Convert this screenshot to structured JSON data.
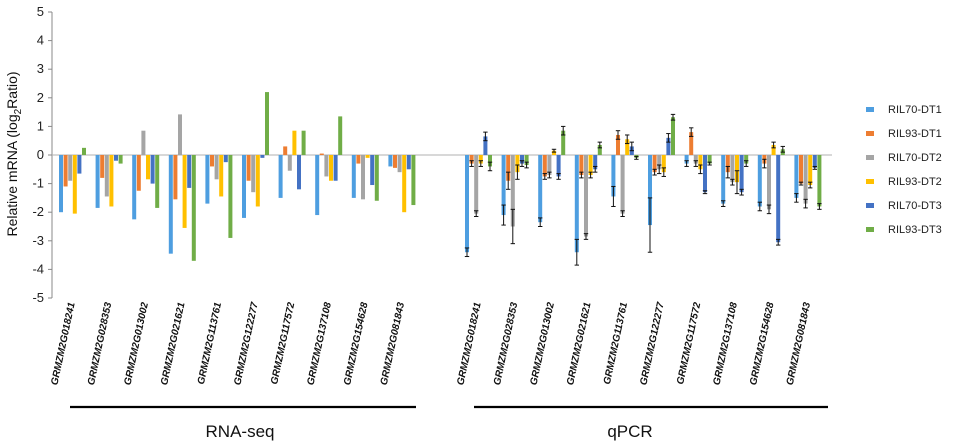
{
  "chart_data": {
    "type": "bar",
    "ylabel_prefix": "Relative mRNA (log",
    "ylabel_sub": "2",
    "ylabel_suffix": "Ratio)",
    "ylim": [
      -5,
      5
    ],
    "yticks": [
      "5",
      "4",
      "3",
      "2",
      "1",
      "0",
      "-1",
      "-2",
      "-3",
      "-4",
      "-5"
    ],
    "grid": false,
    "legend_position": "right",
    "categories": [
      "GRMZM2G018241",
      "GRMZM2G028353",
      "GRMZM2G013002",
      "GRMZM2G021621",
      "GRMZM2G113761",
      "GRMZM2G122277",
      "GRMZM2G117572",
      "GRMZM2G137108",
      "GRMZM2G154628",
      "GRMZM2G081843"
    ],
    "series_names": [
      "RIL70-DT1",
      "RIL93-DT1",
      "RIL70-DT2",
      "RIL93-DT2",
      "RIL70-DT3",
      "RIL93-DT3"
    ],
    "series_colors": [
      "#4e9ee0",
      "#ed7d31",
      "#a5a5a5",
      "#ffc000",
      "#4472c4",
      "#70ad47"
    ],
    "groups": [
      {
        "name": "RNA-seq",
        "values": [
          [
            -2.0,
            -1.1,
            -0.9,
            -2.05,
            -0.65,
            0.25
          ],
          [
            -1.85,
            -0.8,
            -1.45,
            -1.8,
            -0.2,
            -0.3
          ],
          [
            -2.25,
            -1.25,
            0.85,
            -0.85,
            -1.0,
            -1.85
          ],
          [
            -3.45,
            -1.55,
            1.42,
            -2.55,
            -1.15,
            -3.7
          ],
          [
            -1.7,
            -0.4,
            -0.85,
            -1.45,
            -0.25,
            -2.9
          ],
          [
            -2.2,
            -0.9,
            -1.3,
            -1.8,
            -0.1,
            2.2
          ],
          [
            -1.5,
            0.3,
            -0.55,
            0.85,
            -1.2,
            0.85
          ],
          [
            -2.1,
            0.05,
            -0.75,
            -0.9,
            -0.9,
            1.35
          ],
          [
            -1.5,
            -0.3,
            -1.55,
            -0.1,
            -1.05,
            -1.6
          ],
          [
            -0.4,
            -0.45,
            -0.6,
            -2.0,
            -0.5,
            -1.75
          ]
        ]
      },
      {
        "name": "qPCR",
        "values": [
          [
            -3.4,
            -0.3,
            -2.05,
            -0.3,
            0.65,
            -0.4
          ],
          [
            -2.1,
            -0.9,
            -2.5,
            -0.6,
            -0.3,
            -0.35
          ],
          [
            -2.35,
            -0.75,
            -0.7,
            0.15,
            -0.75,
            0.85
          ],
          [
            -3.4,
            -0.7,
            -2.85,
            -0.7,
            -0.5,
            0.35
          ],
          [
            -1.45,
            0.7,
            -2.05,
            0.55,
            0.3,
            -0.1
          ],
          [
            -2.45,
            -0.6,
            -0.5,
            -0.6,
            0.6,
            1.32
          ],
          [
            -0.3,
            0.8,
            -0.3,
            -0.5,
            -1.3,
            -0.3
          ],
          [
            -1.7,
            -0.6,
            -0.95,
            -0.95,
            -1.3,
            -0.3
          ],
          [
            -1.8,
            -0.3,
            -1.9,
            0.35,
            -3.05,
            0.2
          ],
          [
            -1.5,
            -1.0,
            -1.7,
            -1.05,
            -0.45,
            -1.8
          ]
        ],
        "errors": [
          [
            0.15,
            0.1,
            0.1,
            0.1,
            0.15,
            0.15
          ],
          [
            0.35,
            0.3,
            0.6,
            0.25,
            0.1,
            0.1
          ],
          [
            0.15,
            0.1,
            0.1,
            0.05,
            0.1,
            0.15
          ],
          [
            0.45,
            0.1,
            0.1,
            0.1,
            0.1,
            0.1
          ],
          [
            0.35,
            0.15,
            0.1,
            0.15,
            0.15,
            0.05
          ],
          [
            0.95,
            0.1,
            0.15,
            0.15,
            0.15,
            0.1
          ],
          [
            0.1,
            0.15,
            0.1,
            0.15,
            0.05,
            0.05
          ],
          [
            0.1,
            0.2,
            0.1,
            0.4,
            0.1,
            0.1
          ],
          [
            0.15,
            0.15,
            0.15,
            0.1,
            0.1,
            0.1
          ],
          [
            0.15,
            0.05,
            0.15,
            0.1,
            0.05,
            0.1
          ]
        ]
      }
    ]
  }
}
